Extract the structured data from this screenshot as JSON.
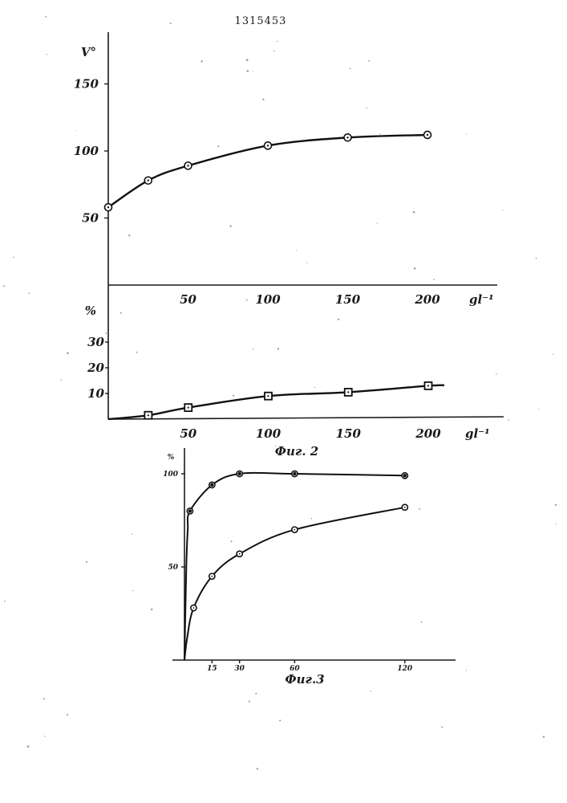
{
  "document": {
    "patent_number": "1315453"
  },
  "chart_data": [
    {
      "type": "line",
      "ylabel": "V°",
      "xlabel": "gl⁻¹",
      "xlim": [
        0,
        200
      ],
      "ylim": [
        0,
        200
      ],
      "y_ticks": [
        50,
        100,
        150
      ],
      "x_ticks": [
        50,
        100,
        150,
        200
      ],
      "marker": "circle",
      "series": [
        {
          "x": [
            0,
            25,
            50,
            100,
            150,
            200
          ],
          "values": [
            58,
            78,
            89,
            104,
            110,
            112
          ]
        }
      ]
    },
    {
      "type": "line",
      "ylabel": "%",
      "xlabel": "gl⁻¹",
      "caption": "Фиг. 2",
      "xlim": [
        0,
        200
      ],
      "ylim": [
        0,
        40
      ],
      "y_ticks": [
        10,
        20,
        30
      ],
      "x_ticks": [
        50,
        100,
        150,
        200
      ],
      "marker": "square",
      "series": [
        {
          "x": [
            25,
            50,
            100,
            150,
            200
          ],
          "values": [
            1.5,
            4.5,
            9,
            10.5,
            13
          ]
        }
      ]
    },
    {
      "type": "line",
      "ylabel": "%",
      "caption": "Фиг.3",
      "xlim": [
        0,
        135
      ],
      "ylim": [
        0,
        105
      ],
      "y_ticks": [
        50,
        100
      ],
      "x_ticks": [
        15,
        30,
        60,
        120
      ],
      "series": [
        {
          "marker": "filled",
          "x": [
            3,
            15,
            30,
            60,
            120
          ],
          "values": [
            80,
            94,
            100,
            100,
            99
          ]
        },
        {
          "marker": "open",
          "x": [
            5,
            15,
            30,
            60,
            120
          ],
          "values": [
            28,
            45,
            57,
            70,
            82
          ]
        }
      ]
    }
  ]
}
